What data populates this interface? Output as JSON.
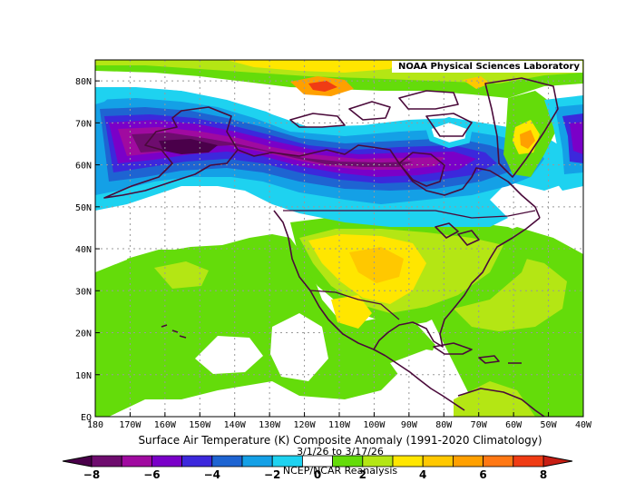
{
  "credit": "NOAA Physical Sciences Laboratory",
  "title": "Surface Air Temperature (K) Composite Anomaly (1991-2020 Climatology)",
  "date_range": "3/1/26  to 3/17/26",
  "source": "NCEP/NCAR Reanalysis",
  "map": {
    "lon_min": -180,
    "lon_max": -40,
    "lat_min": 0,
    "lat_max": 85,
    "lon_ticks": [
      {
        "value": -180,
        "label": "180"
      },
      {
        "value": -170,
        "label": "170W"
      },
      {
        "value": -160,
        "label": "160W"
      },
      {
        "value": -150,
        "label": "150W"
      },
      {
        "value": -140,
        "label": "140W"
      },
      {
        "value": -130,
        "label": "130W"
      },
      {
        "value": -120,
        "label": "120W"
      },
      {
        "value": -110,
        "label": "110W"
      },
      {
        "value": -100,
        "label": "100W"
      },
      {
        "value": -90,
        "label": "90W"
      },
      {
        "value": -80,
        "label": "80W"
      },
      {
        "value": -70,
        "label": "70W"
      },
      {
        "value": -60,
        "label": "60W"
      },
      {
        "value": -50,
        "label": "50W"
      },
      {
        "value": -40,
        "label": "40W"
      }
    ],
    "lat_ticks": [
      {
        "value": 0,
        "label": "EQ"
      },
      {
        "value": 10,
        "label": "10N"
      },
      {
        "value": 20,
        "label": "20N"
      },
      {
        "value": 30,
        "label": "30N"
      },
      {
        "value": 40,
        "label": "40N"
      },
      {
        "value": 50,
        "label": "50N"
      },
      {
        "value": 60,
        "label": "60N"
      },
      {
        "value": 70,
        "label": "70N"
      },
      {
        "value": 80,
        "label": "80N"
      }
    ]
  },
  "colorbar": {
    "levels": [
      -8,
      -7,
      -6,
      -5,
      -4,
      -3,
      -2,
      -1,
      1,
      2,
      3,
      4,
      5,
      6,
      7,
      8
    ],
    "colors": [
      "#6e0c6e",
      "#a00aa0",
      "#7a00c8",
      "#3c28dc",
      "#1e64d2",
      "#14a0e6",
      "#1ed2f0",
      "#ffffff",
      "#64dc0a",
      "#b4e614",
      "#ffe600",
      "#ffc800",
      "#ffa000",
      "#ff7814",
      "#f03c14"
    ],
    "low_color": "#4a004a",
    "high_color": "#c81e14",
    "labels": [
      {
        "value": -8,
        "text": "−8"
      },
      {
        "value": -6,
        "text": "−6"
      },
      {
        "value": -4,
        "text": "−4"
      },
      {
        "value": -2,
        "text": "−2"
      },
      {
        "value": 0,
        "text": "0"
      },
      {
        "value": 2,
        "text": "2"
      },
      {
        "value": 4,
        "text": "4"
      },
      {
        "value": 6,
        "text": "6"
      },
      {
        "value": 8,
        "text": "8"
      }
    ]
  }
}
